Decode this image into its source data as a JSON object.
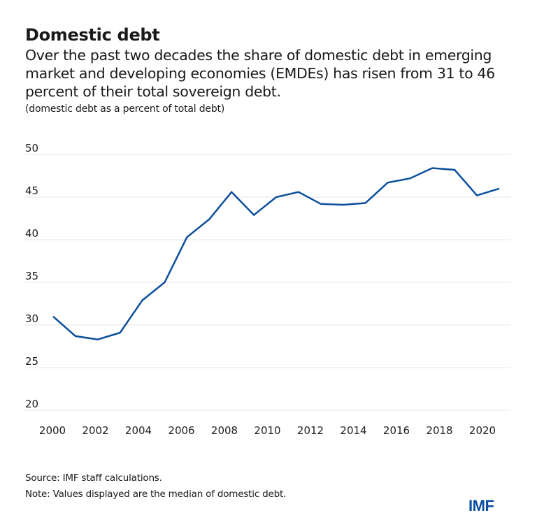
{
  "header": {
    "title": "Domestic debt",
    "subtitle": "Over the past two decades the share of domestic debt in emerging market and developing economies (EMDEs) has risen from 31 to 46 percent of their total sovereign debt.",
    "units_caption": "(domestic debt as a percent of total debt)"
  },
  "footer": {
    "source": "Source: IMF staff calculations.",
    "note": "Note: Values displayed are the median of domestic debt.",
    "logo_text": "IMF"
  },
  "colors": {
    "line": "#0b4f9c",
    "logo": "#0b4ea2",
    "grid": "#e6e6e6"
  },
  "chart_data": {
    "type": "line",
    "title": "Domestic debt",
    "xlabel": "",
    "ylabel": "domestic debt as a percent of total debt",
    "x": [
      2000,
      2001,
      2002,
      2003,
      2004,
      2005,
      2006,
      2007,
      2008,
      2009,
      2010,
      2011,
      2012,
      2013,
      2014,
      2015,
      2016,
      2017,
      2018,
      2019,
      2020
    ],
    "series": [
      {
        "name": "Domestic debt (median, % of total debt)",
        "values": [
          31.0,
          28.7,
          28.3,
          29.1,
          32.9,
          35.0,
          40.3,
          42.4,
          45.6,
          42.9,
          45.0,
          45.6,
          44.2,
          44.1,
          44.3,
          46.7,
          47.2,
          48.4,
          48.2,
          45.2,
          46.0
        ]
      }
    ],
    "ylim": [
      20,
      50
    ],
    "yticks": [
      20,
      25,
      30,
      35,
      40,
      45,
      50
    ],
    "xticks": [
      "2000",
      "2002",
      "2004",
      "2006",
      "2008",
      "2010",
      "2012",
      "2014",
      "2016",
      "2018",
      "2020"
    ],
    "grid": true,
    "legend": "none"
  }
}
